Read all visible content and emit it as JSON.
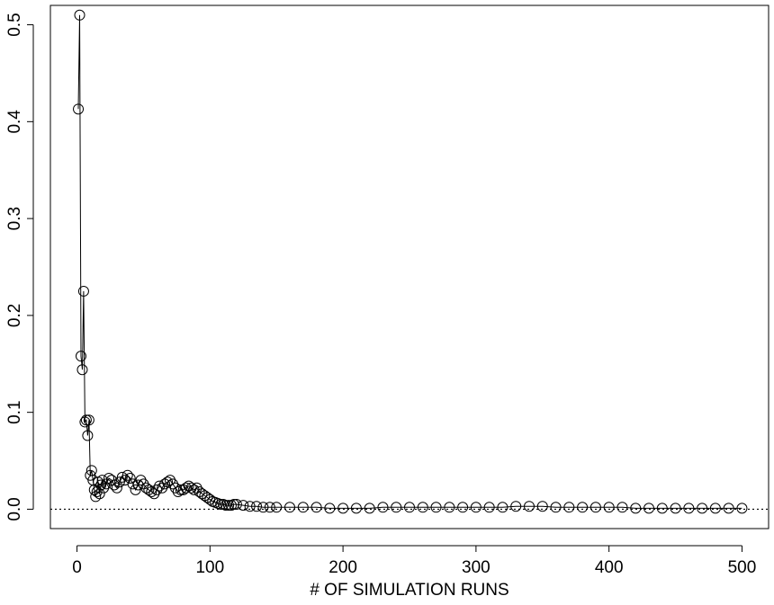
{
  "chart_data": {
    "type": "scatter",
    "title": "",
    "xlabel": "# OF SIMULATION RUNS",
    "ylabel": "",
    "xlim": [
      -20,
      520
    ],
    "ylim": [
      -0.02,
      0.52
    ],
    "x_ticks": [
      0,
      100,
      200,
      300,
      400,
      500
    ],
    "x_tick_labels": [
      "0",
      "100",
      "200",
      "300",
      "400",
      "500"
    ],
    "y_ticks": [
      0.0,
      0.1,
      0.2,
      0.3,
      0.4,
      0.5
    ],
    "y_tick_labels": [
      "0.0",
      "0.1",
      "0.2",
      "0.3",
      "0.4",
      "0.5"
    ],
    "reference_line": {
      "y": 0.0,
      "style": "dotted"
    },
    "line_connecting_points": true,
    "marker": "open-circle",
    "grid": false,
    "legend": "none",
    "series": [
      {
        "x": [
          1,
          2,
          3,
          4,
          5,
          6,
          7,
          8,
          9,
          10,
          11,
          12,
          13,
          14,
          15,
          16,
          17,
          18,
          19,
          20,
          22,
          24,
          26,
          28,
          30,
          32,
          34,
          36,
          38,
          40,
          42,
          44,
          46,
          48,
          50,
          52,
          54,
          56,
          58,
          60,
          62,
          64,
          66,
          68,
          70,
          72,
          74,
          76,
          78,
          80,
          82,
          84,
          86,
          88,
          90,
          92,
          94,
          96,
          98,
          100,
          102,
          104,
          106,
          108,
          110,
          112,
          114,
          116,
          118,
          120,
          125,
          130,
          135,
          140,
          145,
          150,
          160,
          170,
          180,
          190,
          200,
          210,
          220,
          230,
          240,
          250,
          260,
          270,
          280,
          290,
          300,
          310,
          320,
          330,
          340,
          350,
          360,
          370,
          380,
          390,
          400,
          410,
          420,
          430,
          440,
          450,
          460,
          470,
          480,
          490,
          500
        ],
        "y": [
          0.413,
          0.51,
          0.158,
          0.144,
          0.225,
          0.09,
          0.092,
          0.076,
          0.092,
          0.035,
          0.04,
          0.03,
          0.02,
          0.013,
          0.018,
          0.028,
          0.016,
          0.025,
          0.03,
          0.022,
          0.026,
          0.032,
          0.03,
          0.025,
          0.022,
          0.028,
          0.033,
          0.03,
          0.035,
          0.032,
          0.026,
          0.02,
          0.025,
          0.03,
          0.026,
          0.022,
          0.02,
          0.018,
          0.016,
          0.02,
          0.024,
          0.022,
          0.026,
          0.028,
          0.03,
          0.026,
          0.022,
          0.018,
          0.02,
          0.02,
          0.022,
          0.024,
          0.022,
          0.02,
          0.022,
          0.018,
          0.016,
          0.014,
          0.012,
          0.01,
          0.008,
          0.007,
          0.006,
          0.005,
          0.005,
          0.004,
          0.004,
          0.004,
          0.005,
          0.005,
          0.004,
          0.003,
          0.003,
          0.002,
          0.002,
          0.002,
          0.002,
          0.002,
          0.002,
          0.001,
          0.001,
          0.001,
          0.001,
          0.002,
          0.002,
          0.002,
          0.002,
          0.002,
          0.002,
          0.002,
          0.002,
          0.002,
          0.002,
          0.003,
          0.003,
          0.003,
          0.002,
          0.002,
          0.002,
          0.002,
          0.002,
          0.002,
          0.001,
          0.001,
          0.001,
          0.001,
          0.001,
          0.001,
          0.001,
          0.001,
          0.001
        ]
      }
    ]
  },
  "colors": {
    "ink": "#000000",
    "background": "#ffffff"
  }
}
